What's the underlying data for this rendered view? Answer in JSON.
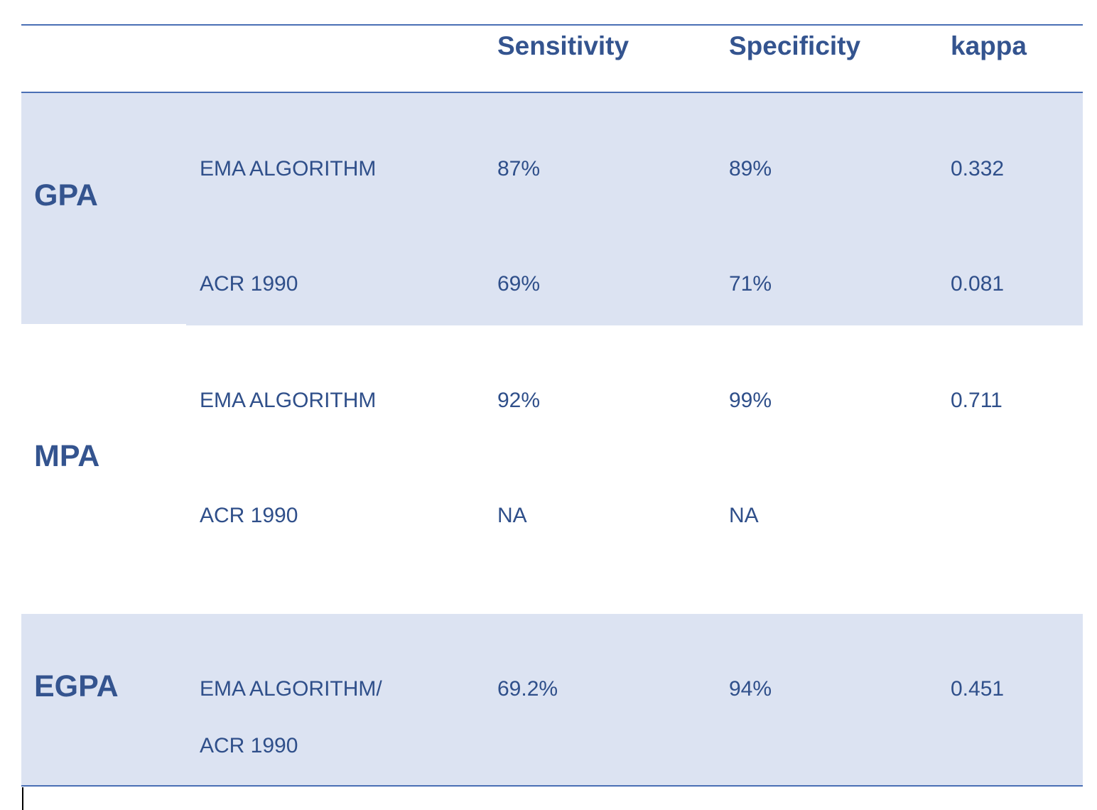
{
  "table": {
    "headers": {
      "sensitivity": "Sensitivity",
      "specificity": "Specificity",
      "kappa": "kappa"
    },
    "groups": [
      {
        "name": "GPA",
        "rows": [
          {
            "method": "EMA ALGORITHM",
            "sensitivity": "87%",
            "specificity": "89%",
            "kappa": "0.332"
          },
          {
            "method": "ACR 1990",
            "sensitivity": "69%",
            "specificity": "71%",
            "kappa": "0.081"
          }
        ]
      },
      {
        "name": "MPA",
        "rows": [
          {
            "method": "EMA ALGORITHM",
            "sensitivity": "92%",
            "specificity": "99%",
            "kappa": "0.711"
          },
          {
            "method": "ACR 1990",
            "sensitivity": "NA",
            "specificity": "NA",
            "kappa": ""
          }
        ]
      },
      {
        "name": "EGPA",
        "rows": [
          {
            "method": "EMA ALGORITHM/",
            "method_line2": "ACR 1990",
            "sensitivity": "69.2%",
            "specificity": "94%",
            "kappa": "0.451"
          }
        ]
      }
    ],
    "colors": {
      "text": "#2f4f8a",
      "band": "#dce3f2",
      "rule": "#4a6fb5"
    }
  }
}
